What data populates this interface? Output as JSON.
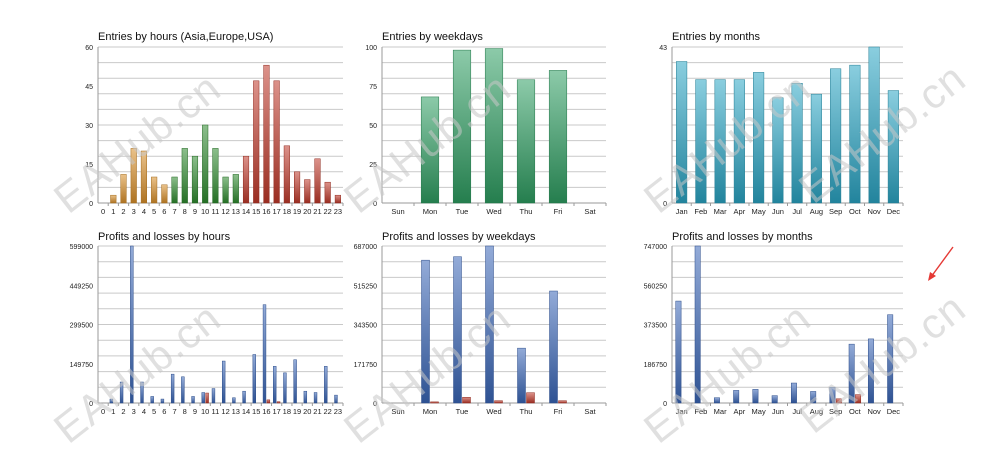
{
  "watermark": "EAHub.cn",
  "arrow_color": "#e53935",
  "chart_data": [
    {
      "id": "hours-entries",
      "type": "bar",
      "title": "Entries by hours (Asia,Europe,USA)",
      "categories": [
        "0",
        "1",
        "2",
        "3",
        "4",
        "5",
        "6",
        "7",
        "8",
        "9",
        "10",
        "11",
        "12",
        "13",
        "14",
        "15",
        "16",
        "17",
        "18",
        "19",
        "20",
        "21",
        "22",
        "23"
      ],
      "values": [
        0,
        3,
        11,
        21,
        20,
        10,
        7,
        10,
        21,
        18,
        30,
        21,
        10,
        11,
        18,
        47,
        53,
        47,
        22,
        12,
        9,
        17,
        8,
        3
      ],
      "segment_colors": [
        "#d9902b",
        "#d9902b",
        "#d9902b",
        "#d9902b",
        "#d9902b",
        "#d9902b",
        "#d9902b",
        "#2e8b2e",
        "#2e8b2e",
        "#2e8b2e",
        "#2e8b2e",
        "#2e8b2e",
        "#2e8b2e",
        "#2e8b2e",
        "#c0392b",
        "#c0392b",
        "#c0392b",
        "#c0392b",
        "#c0392b",
        "#c0392b",
        "#c0392b",
        "#c0392b",
        "#c0392b",
        "#c0392b"
      ],
      "ylim": [
        0,
        60
      ],
      "yticks": [
        "0",
        "15",
        "30",
        "45",
        "60"
      ],
      "grid": true
    },
    {
      "id": "weekday-entries",
      "type": "bar",
      "title": "Entries by weekdays",
      "categories": [
        "Sun",
        "Mon",
        "Tue",
        "Wed",
        "Thu",
        "Fri",
        "Sat"
      ],
      "values": [
        0,
        68,
        98,
        99,
        79,
        85,
        0
      ],
      "color": "#2e9e62",
      "ylim": [
        0,
        100
      ],
      "yticks": [
        "0",
        "25",
        "50",
        "75",
        "100"
      ],
      "grid": true
    },
    {
      "id": "month-entries",
      "type": "bar",
      "title": "Entries by months",
      "categories": [
        "Jan",
        "Feb",
        "Mar",
        "Apr",
        "May",
        "Jun",
        "Jul",
        "Aug",
        "Sep",
        "Oct",
        "Nov",
        "Dec"
      ],
      "values": [
        39,
        34,
        34,
        34,
        36,
        29,
        33,
        30,
        37,
        38,
        43,
        31
      ],
      "color": "#2aa5c4",
      "ylim": [
        0,
        43
      ],
      "yticks": [
        "0",
        "43"
      ],
      "grid": true
    },
    {
      "id": "hours-pl",
      "type": "bar",
      "title": "Profits and losses by hours",
      "categories": [
        "0",
        "1",
        "2",
        "3",
        "4",
        "5",
        "6",
        "7",
        "8",
        "9",
        "10",
        "11",
        "12",
        "13",
        "14",
        "15",
        "16",
        "17",
        "18",
        "19",
        "20",
        "21",
        "22",
        "23"
      ],
      "series": [
        {
          "color": "#3a66b8",
          "values": [
            0,
            15000,
            80000,
            599000,
            80000,
            25000,
            15000,
            110000,
            100000,
            25000,
            40000,
            55000,
            160000,
            20000,
            45000,
            185000,
            375000,
            140000,
            115000,
            165000,
            45000,
            40000,
            140000,
            30000
          ]
        },
        {
          "color": "#c0392b",
          "values": [
            0,
            0,
            0,
            0,
            0,
            0,
            0,
            0,
            0,
            0,
            38000,
            0,
            0,
            0,
            0,
            0,
            12000,
            5000,
            0,
            0,
            0,
            0,
            0,
            0
          ]
        }
      ],
      "ylim": [
        0,
        599000
      ],
      "yticks": [
        "0",
        "149750",
        "299500",
        "449250",
        "599000"
      ],
      "grid": true
    },
    {
      "id": "weekday-pl",
      "type": "bar",
      "title": "Profits and losses by weekdays",
      "categories": [
        "Sun",
        "Mon",
        "Tue",
        "Wed",
        "Thu",
        "Fri",
        "Sat"
      ],
      "series": [
        {
          "color": "#3a66b8",
          "values": [
            0,
            625000,
            640000,
            687000,
            240000,
            490000,
            0
          ]
        },
        {
          "color": "#c0392b",
          "values": [
            0,
            5000,
            25000,
            10000,
            45000,
            10000,
            0
          ]
        }
      ],
      "ylim": [
        0,
        687000
      ],
      "yticks": [
        "0",
        "171750",
        "343500",
        "515250",
        "687000"
      ],
      "grid": true
    },
    {
      "id": "month-pl",
      "type": "bar",
      "title": "Profits and losses by months",
      "categories": [
        "Jan",
        "Feb",
        "Mar",
        "Apr",
        "May",
        "Jun",
        "Jul",
        "Aug",
        "Sep",
        "Oct",
        "Nov",
        "Dec"
      ],
      "series": [
        {
          "color": "#3a66b8",
          "values": [
            485000,
            747000,
            25000,
            60000,
            65000,
            35000,
            95000,
            55000,
            75000,
            280000,
            305000,
            420000
          ]
        },
        {
          "color": "#c0392b",
          "values": [
            0,
            0,
            0,
            0,
            0,
            0,
            0,
            0,
            20000,
            40000,
            0,
            0
          ]
        }
      ],
      "ylim": [
        0,
        747000
      ],
      "yticks": [
        "0",
        "186750",
        "373500",
        "560250",
        "747000"
      ],
      "grid": true
    }
  ]
}
